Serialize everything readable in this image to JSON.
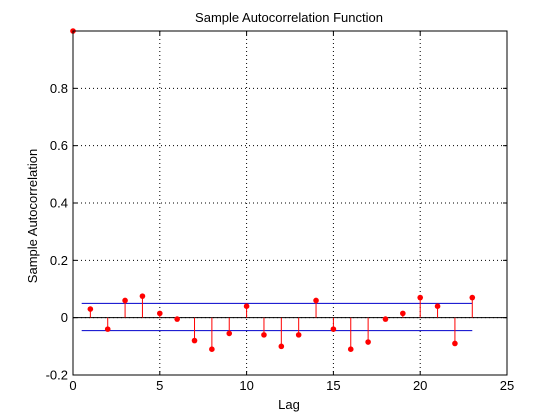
{
  "chart_data": {
    "type": "stem",
    "title": "Sample Autocorrelation Function",
    "xlabel": "Lag",
    "ylabel": "Sample Autocorrelation",
    "xlim": [
      0,
      25
    ],
    "ylim": [
      -0.2,
      1.0
    ],
    "xticks": [
      0,
      5,
      10,
      15,
      20,
      25
    ],
    "yticks": [
      -0.2,
      0,
      0.2,
      0.4,
      0.6,
      0.8
    ],
    "xtick_labels": [
      "0",
      "5",
      "10",
      "15",
      "20",
      "25"
    ],
    "ytick_labels": [
      "-0.2",
      "0",
      "0.2",
      "0.4",
      "0.6",
      "0.8"
    ],
    "grid": true,
    "lags": [
      0,
      1,
      2,
      3,
      4,
      5,
      6,
      7,
      8,
      9,
      10,
      11,
      12,
      13,
      14,
      15,
      16,
      17,
      18,
      19,
      20,
      21,
      22,
      23
    ],
    "values": [
      1.0,
      0.03,
      -0.04,
      0.06,
      0.075,
      0.015,
      -0.005,
      -0.08,
      -0.11,
      -0.055,
      0.04,
      -0.06,
      -0.1,
      -0.06,
      0.06,
      -0.04,
      -0.11,
      -0.085,
      -0.005,
      0.015,
      0.07,
      0.04,
      -0.09,
      0.07
    ],
    "confidence_bounds": [
      0.05,
      -0.045
    ],
    "confidence_bound_range": [
      1,
      23
    ],
    "colors": {
      "stem": "#ff0000",
      "marker": "#ff0000",
      "bounds": "#0000cc",
      "zero_line": "#000000",
      "grid": "#000000"
    }
  }
}
